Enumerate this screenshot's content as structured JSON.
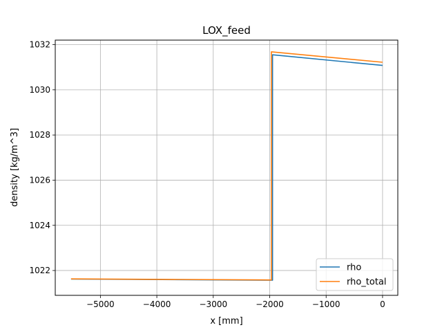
{
  "chart_data": {
    "type": "line",
    "title": "LOX_feed",
    "xlabel": "x [mm]",
    "ylabel": "density [kg/m^3]",
    "xlim": [
      -5800,
      270
    ],
    "ylim": [
      1020.9,
      1032.2
    ],
    "xticks": [
      -5000,
      -4000,
      -3000,
      -2000,
      -1000,
      0
    ],
    "xtick_labels": [
      "−5000",
      "−4000",
      "−3000",
      "−2000",
      "−1000",
      "0"
    ],
    "yticks": [
      1022,
      1024,
      1026,
      1028,
      1030,
      1032
    ],
    "ytick_labels": [
      "1022",
      "1024",
      "1026",
      "1028",
      "1030",
      "1032"
    ],
    "grid": true,
    "legend_position": "lower-right",
    "series": [
      {
        "name": "rho",
        "color": "#1f77b4",
        "x": [
          -5520,
          -1950,
          -1950,
          0
        ],
        "y": [
          1021.62,
          1021.57,
          1031.55,
          1031.08
        ]
      },
      {
        "name": "rho_total",
        "color": "#ff7f0e",
        "x": [
          -5520,
          -1970,
          -1970,
          0
        ],
        "y": [
          1021.63,
          1021.58,
          1031.68,
          1031.22
        ]
      }
    ]
  }
}
